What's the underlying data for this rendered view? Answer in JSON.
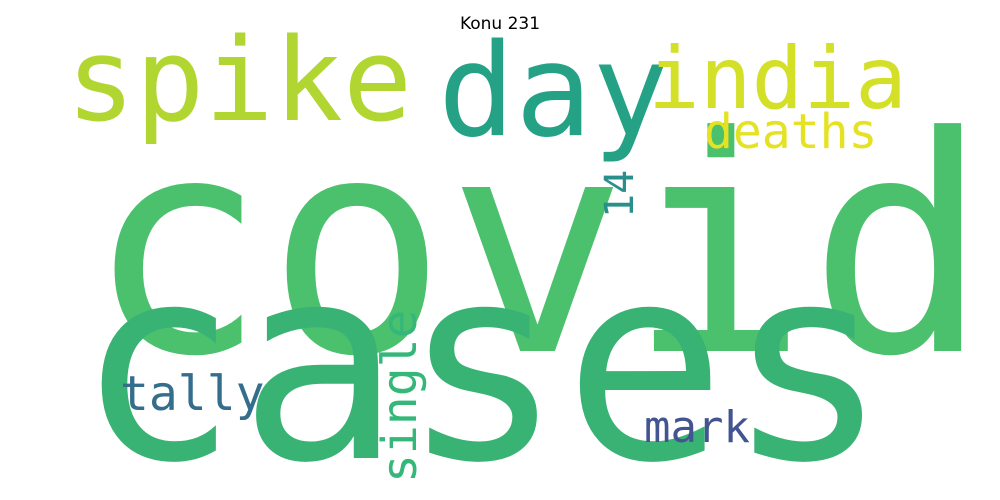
{
  "title": "Konu 231",
  "words": [
    {
      "id": "covid",
      "text": "covid",
      "color": "#4bc16e",
      "orientation": "horizontal"
    },
    {
      "id": "cases",
      "text": "cases",
      "color": "#39b374",
      "orientation": "horizontal"
    },
    {
      "id": "spike",
      "text": "spike",
      "color": "#b2d631",
      "orientation": "horizontal"
    },
    {
      "id": "day",
      "text": "day",
      "color": "#25a286",
      "orientation": "horizontal"
    },
    {
      "id": "india",
      "text": "india",
      "color": "#d3e027",
      "orientation": "horizontal"
    },
    {
      "id": "deaths",
      "text": "deaths",
      "color": "#e4e223",
      "orientation": "horizontal"
    },
    {
      "id": "14",
      "text": "14",
      "color": "#2a8f8c",
      "orientation": "vertical"
    },
    {
      "id": "tally",
      "text": "tally",
      "color": "#356d8d",
      "orientation": "horizontal"
    },
    {
      "id": "single",
      "text": "single",
      "color": "#35b779",
      "orientation": "vertical"
    },
    {
      "id": "mark",
      "text": "mark",
      "color": "#435591",
      "orientation": "horizontal"
    }
  ]
}
